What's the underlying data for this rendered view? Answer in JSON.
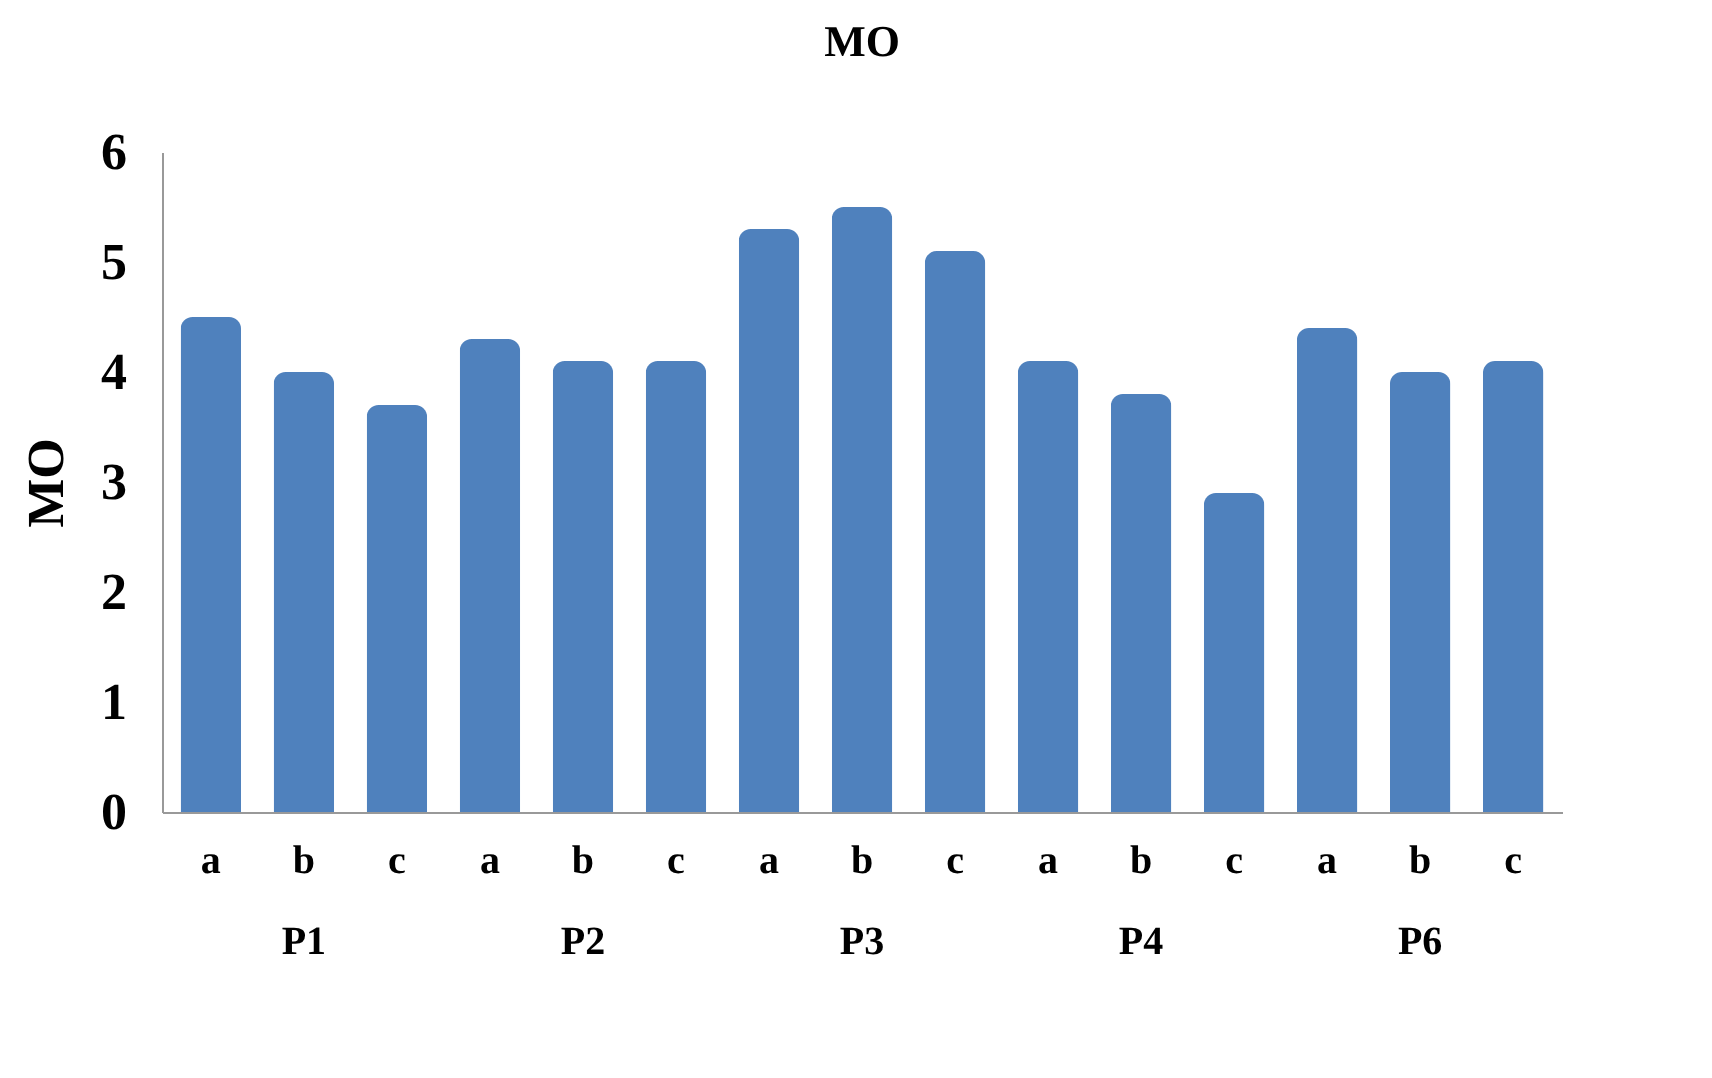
{
  "chart_data": {
    "type": "bar",
    "title": "MO",
    "ylabel": "MO",
    "categories": [
      "a",
      "b",
      "c",
      "a",
      "b",
      "c",
      "a",
      "b",
      "c",
      "a",
      "b",
      "c",
      "a",
      "b",
      "c"
    ],
    "annotations": [
      "P1",
      "P2",
      "P3",
      "P4",
      "P6"
    ],
    "values": [
      4.5,
      4.0,
      3.7,
      4.3,
      4.1,
      4.1,
      5.3,
      5.5,
      5.1,
      4.1,
      3.8,
      2.9,
      4.4,
      4.0,
      4.1
    ],
    "color": "#4f81bd",
    "ylim": [
      0,
      6
    ],
    "yticks": [
      0,
      1,
      2,
      3,
      4,
      5,
      6
    ],
    "grid": false
  }
}
